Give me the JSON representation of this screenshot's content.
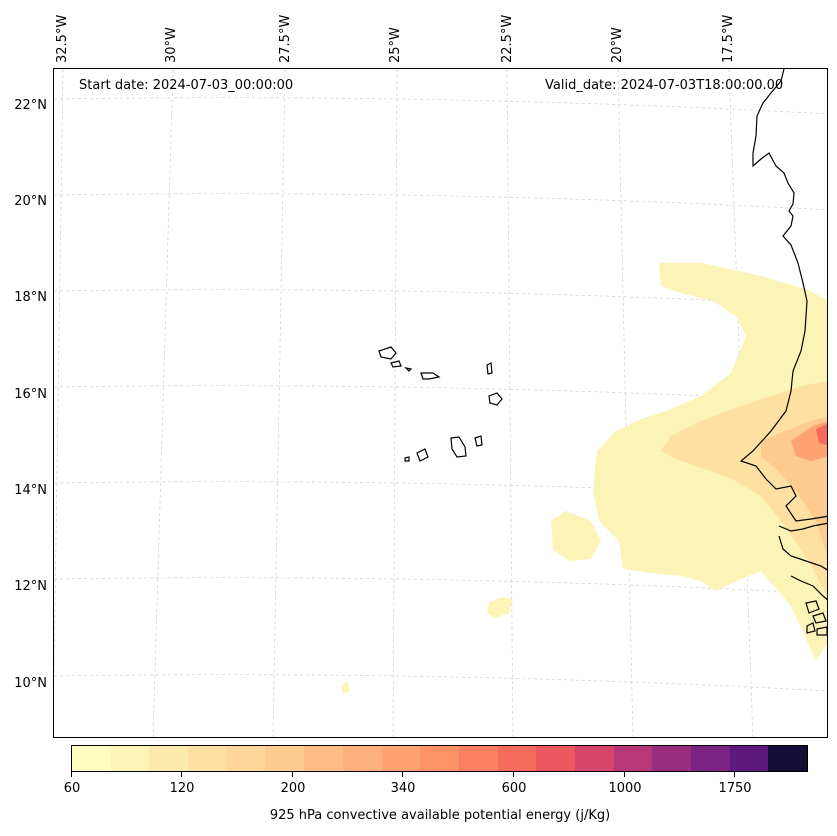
{
  "header": {
    "start_date": "Start date: 2024-07-03_00:00:00",
    "valid_date": "Valid_date: 2024-07-03T18:00:00.00"
  },
  "map": {
    "longitude_labels": [
      "32.5°W",
      "30°W",
      "27.5°W",
      "25°W",
      "22.5°W",
      "20°W",
      "17.5°W"
    ],
    "latitude_labels": [
      "22°N",
      "20°N",
      "18°N",
      "16°N",
      "14°N",
      "12°N",
      "10°N"
    ],
    "colors": {
      "coastline": "#000000",
      "gridline": "#cccccc"
    }
  },
  "colorbar": {
    "title": "925 hPa convective available potential energy (j/Kg)",
    "tick_labels": [
      "60",
      "120",
      "200",
      "340",
      "600",
      "1000",
      "1750"
    ],
    "colors": [
      "#fcfdbf",
      "#fcf4b6",
      "#fceaac",
      "#fde0a2",
      "#fed698",
      "#fecb8e",
      "#febd84",
      "#feb07a",
      "#fea26f",
      "#fd9264",
      "#fb8060",
      "#f66c5c",
      "#ec5860",
      "#d6456c",
      "#b73779",
      "#982d80",
      "#7b2382",
      "#5f187f",
      "#140e36"
    ]
  }
}
